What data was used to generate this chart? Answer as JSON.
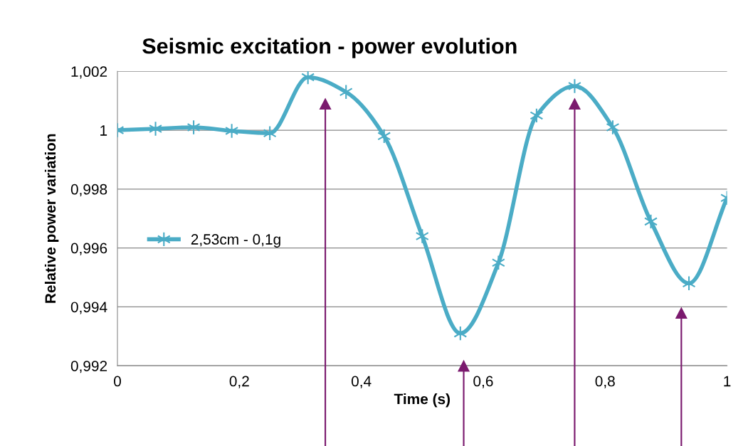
{
  "chart_data": {
    "type": "line",
    "title": "Seismic excitation - power evolution",
    "xlabel": "Time (s)",
    "ylabel": "Relative power variation",
    "x": [
      0,
      0.0625,
      0.125,
      0.1875,
      0.25,
      0.3125,
      0.375,
      0.4375,
      0.5,
      0.5625,
      0.625,
      0.6875,
      0.75,
      0.8125,
      0.875,
      0.9375,
      1
    ],
    "series": [
      {
        "name": "2,53cm - 0,1g",
        "color": "#4bacc6",
        "values": [
          1.0,
          1.00005,
          1.0001,
          0.99998,
          0.9999,
          1.0018,
          1.0013,
          0.9998,
          0.9964,
          0.9931,
          0.9955,
          1.0005,
          1.0015,
          1.0001,
          0.9969,
          0.9948,
          0.9977
        ]
      }
    ],
    "xlim": [
      0,
      1
    ],
    "xticks": [
      0,
      {
        "value": 0.2,
        "label": "0,2"
      },
      {
        "value": 0.4,
        "label": "0,4"
      },
      {
        "value": 0.6,
        "label": "0,6"
      },
      {
        "value": 0.8,
        "label": "0,8"
      },
      1
    ],
    "ylim": [
      0.992,
      1.002
    ],
    "yticks": [
      {
        "value": 0.992,
        "label": "0,992"
      },
      {
        "value": 0.994,
        "label": "0,994"
      },
      {
        "value": 0.996,
        "label": "0,996"
      },
      {
        "value": 0.998,
        "label": "0,998"
      },
      1,
      {
        "value": 1.002,
        "label": "1,002"
      }
    ],
    "grid": "y",
    "legend": "center left",
    "marker": "cross",
    "line_style": "solid"
  }
}
